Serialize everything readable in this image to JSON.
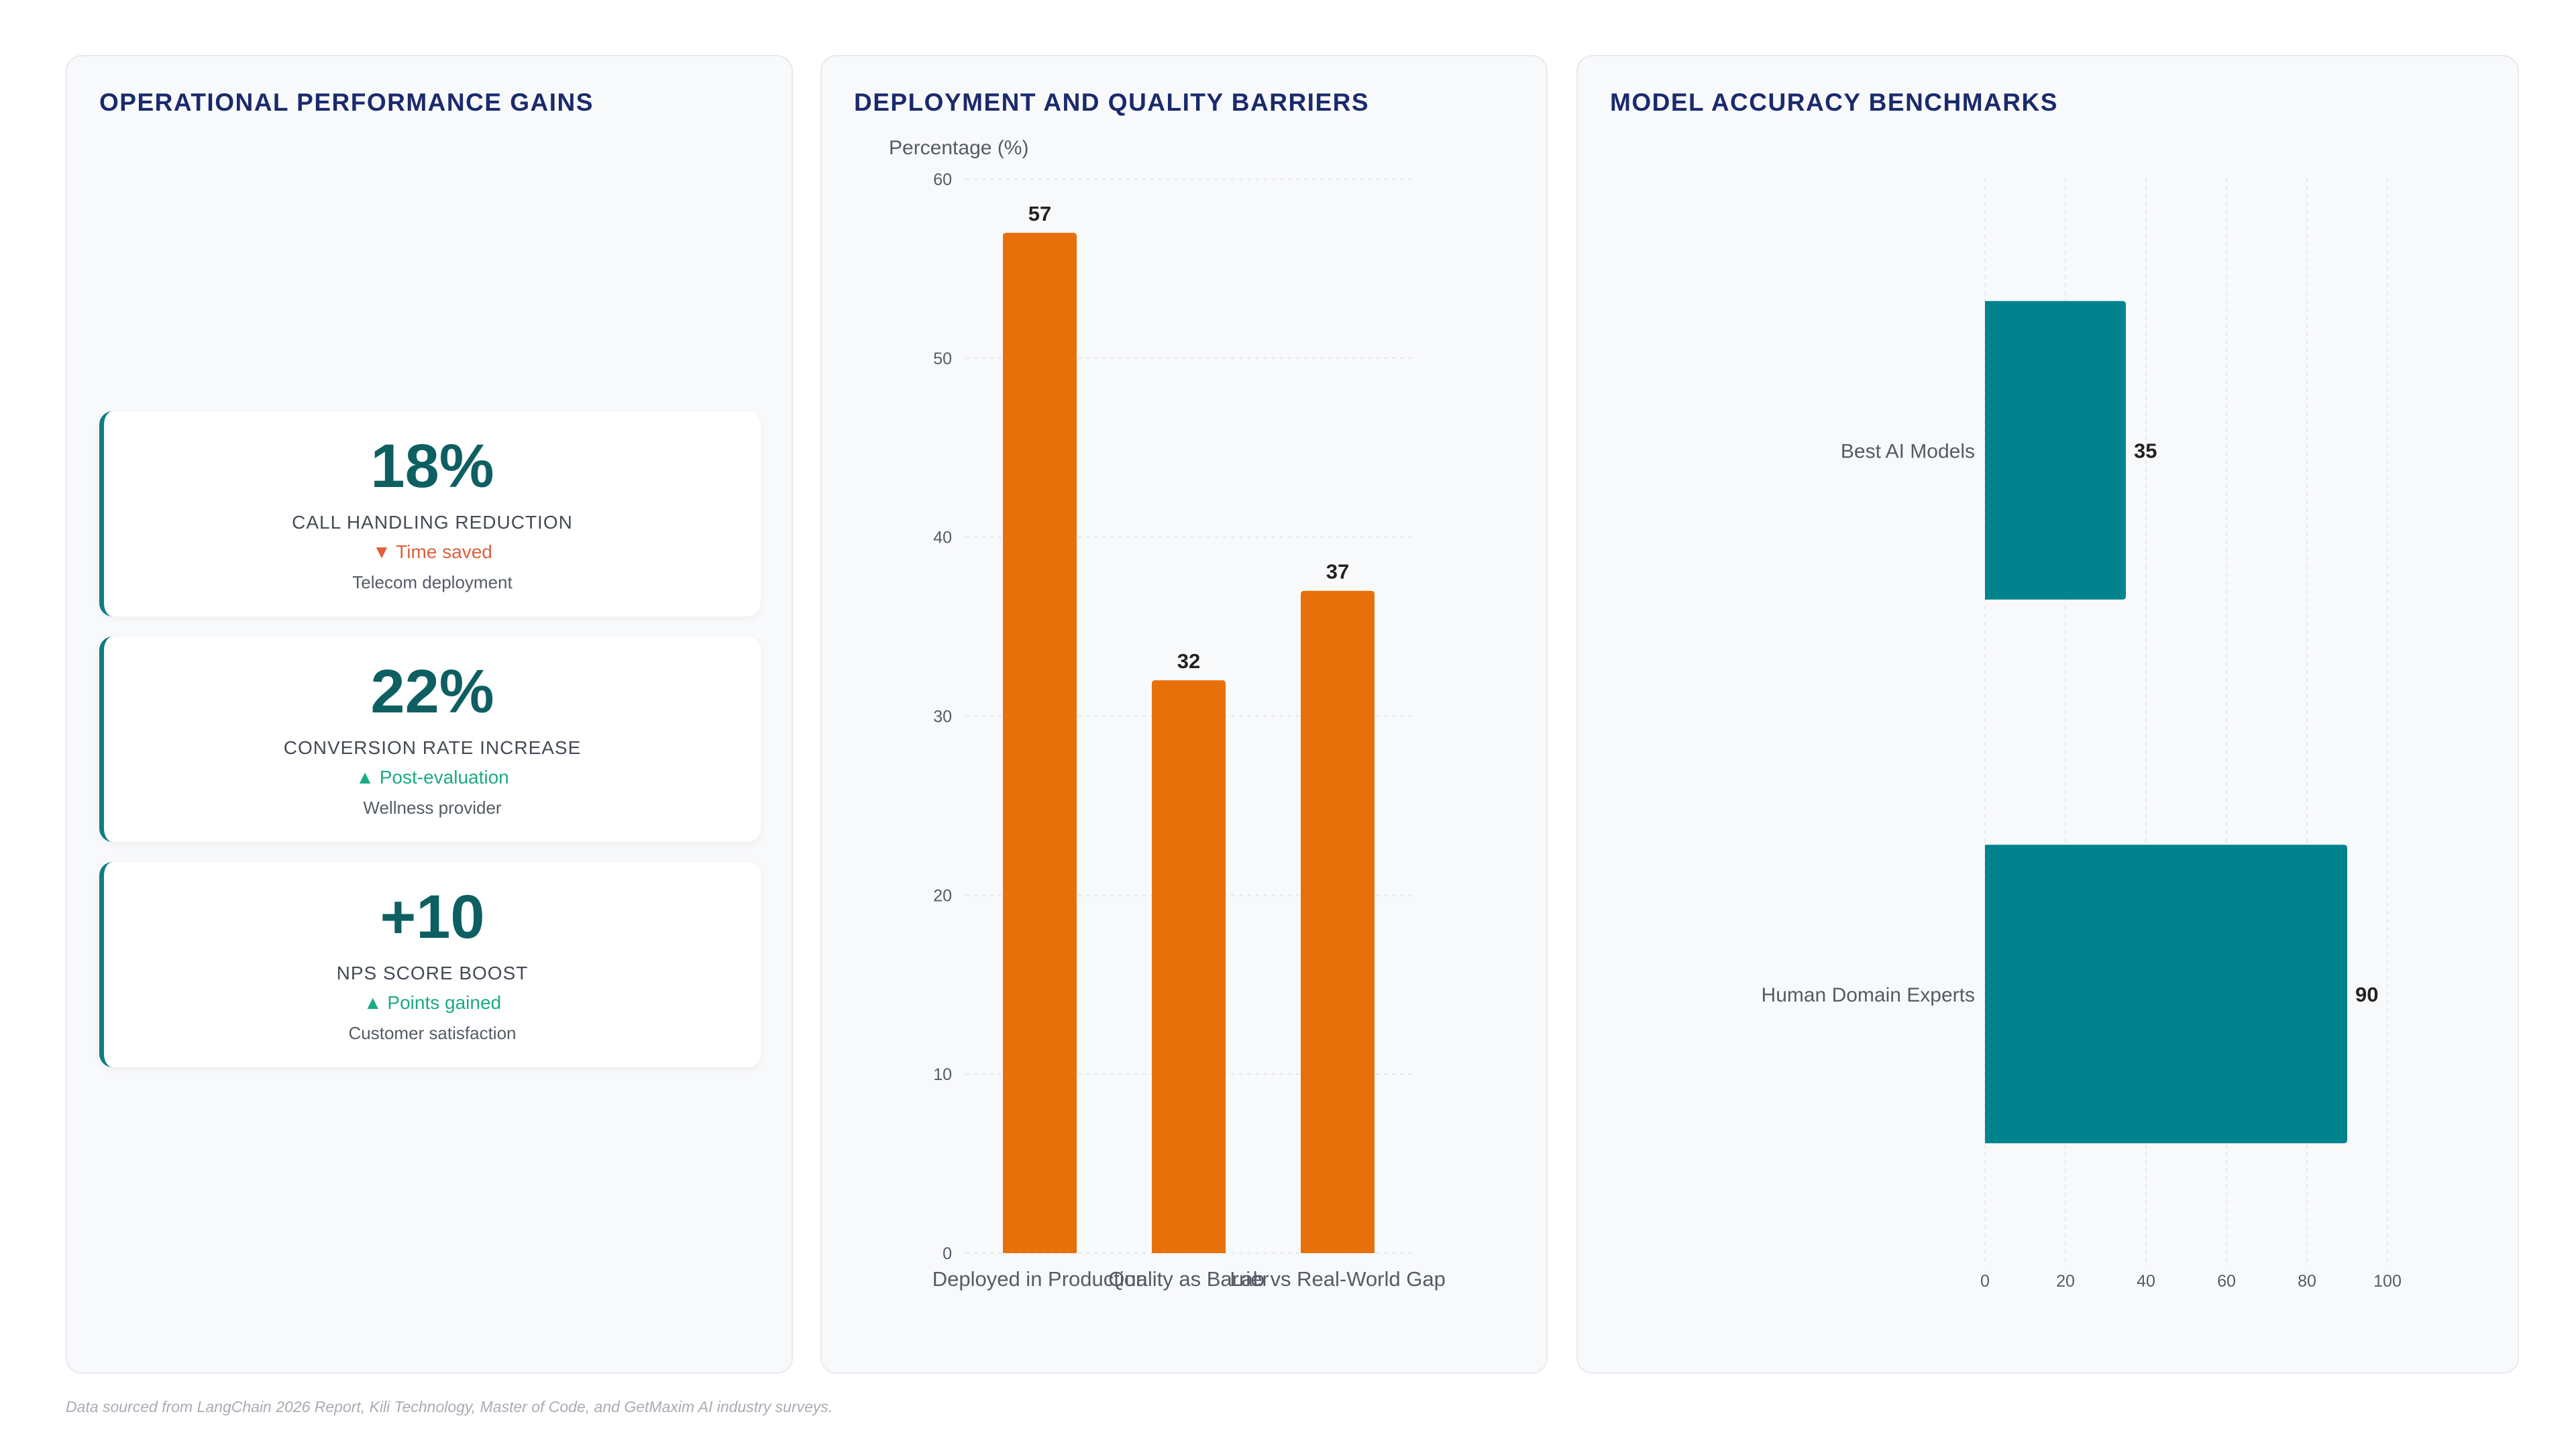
{
  "operational": {
    "title": "OPERATIONAL PERFORMANCE GAINS",
    "kpis": [
      {
        "value": "18%",
        "label": "CALL HANDLING REDUCTION",
        "change_icon": "▼",
        "change_text": "Time saved",
        "direction": "down",
        "context": "Telecom deployment"
      },
      {
        "value": "22%",
        "label": "CONVERSION RATE INCREASE",
        "change_icon": "▲",
        "change_text": "Post-evaluation",
        "direction": "up",
        "context": "Wellness provider"
      },
      {
        "value": "+10",
        "label": "NPS SCORE BOOST",
        "change_icon": "▲",
        "change_text": "Points gained",
        "direction": "up",
        "context": "Customer satisfaction"
      }
    ]
  },
  "barriers": {
    "title": "DEPLOYMENT AND QUALITY BARRIERS"
  },
  "accuracy": {
    "title": "MODEL ACCURACY BENCHMARKS"
  },
  "chart_data": [
    {
      "type": "bar",
      "orientation": "vertical",
      "title": "DEPLOYMENT AND QUALITY BARRIERS",
      "ylabel": "Percentage (%)",
      "categories": [
        "Deployed in Production",
        "Quality as Barrier",
        "Lab vs Real-World Gap"
      ],
      "values": [
        57,
        32,
        37
      ],
      "ylim": [
        0,
        60
      ],
      "yticks": [
        0,
        10,
        20,
        30,
        40,
        50,
        60
      ],
      "color": "#e8700a",
      "grid": true,
      "data_labels": true
    },
    {
      "type": "bar",
      "orientation": "horizontal",
      "title": "MODEL ACCURACY BENCHMARKS",
      "categories": [
        "Best AI Models",
        "Human Domain Experts"
      ],
      "values": [
        35,
        90
      ],
      "xlim": [
        0,
        100
      ],
      "xticks": [
        0,
        20,
        40,
        60,
        80,
        100
      ],
      "color": "#00838c",
      "grid": true,
      "data_labels": true
    }
  ],
  "footnote": "Data sourced from LangChain 2026 Report, Kili Technology, Master of Code, and GetMaxim AI industry surveys."
}
